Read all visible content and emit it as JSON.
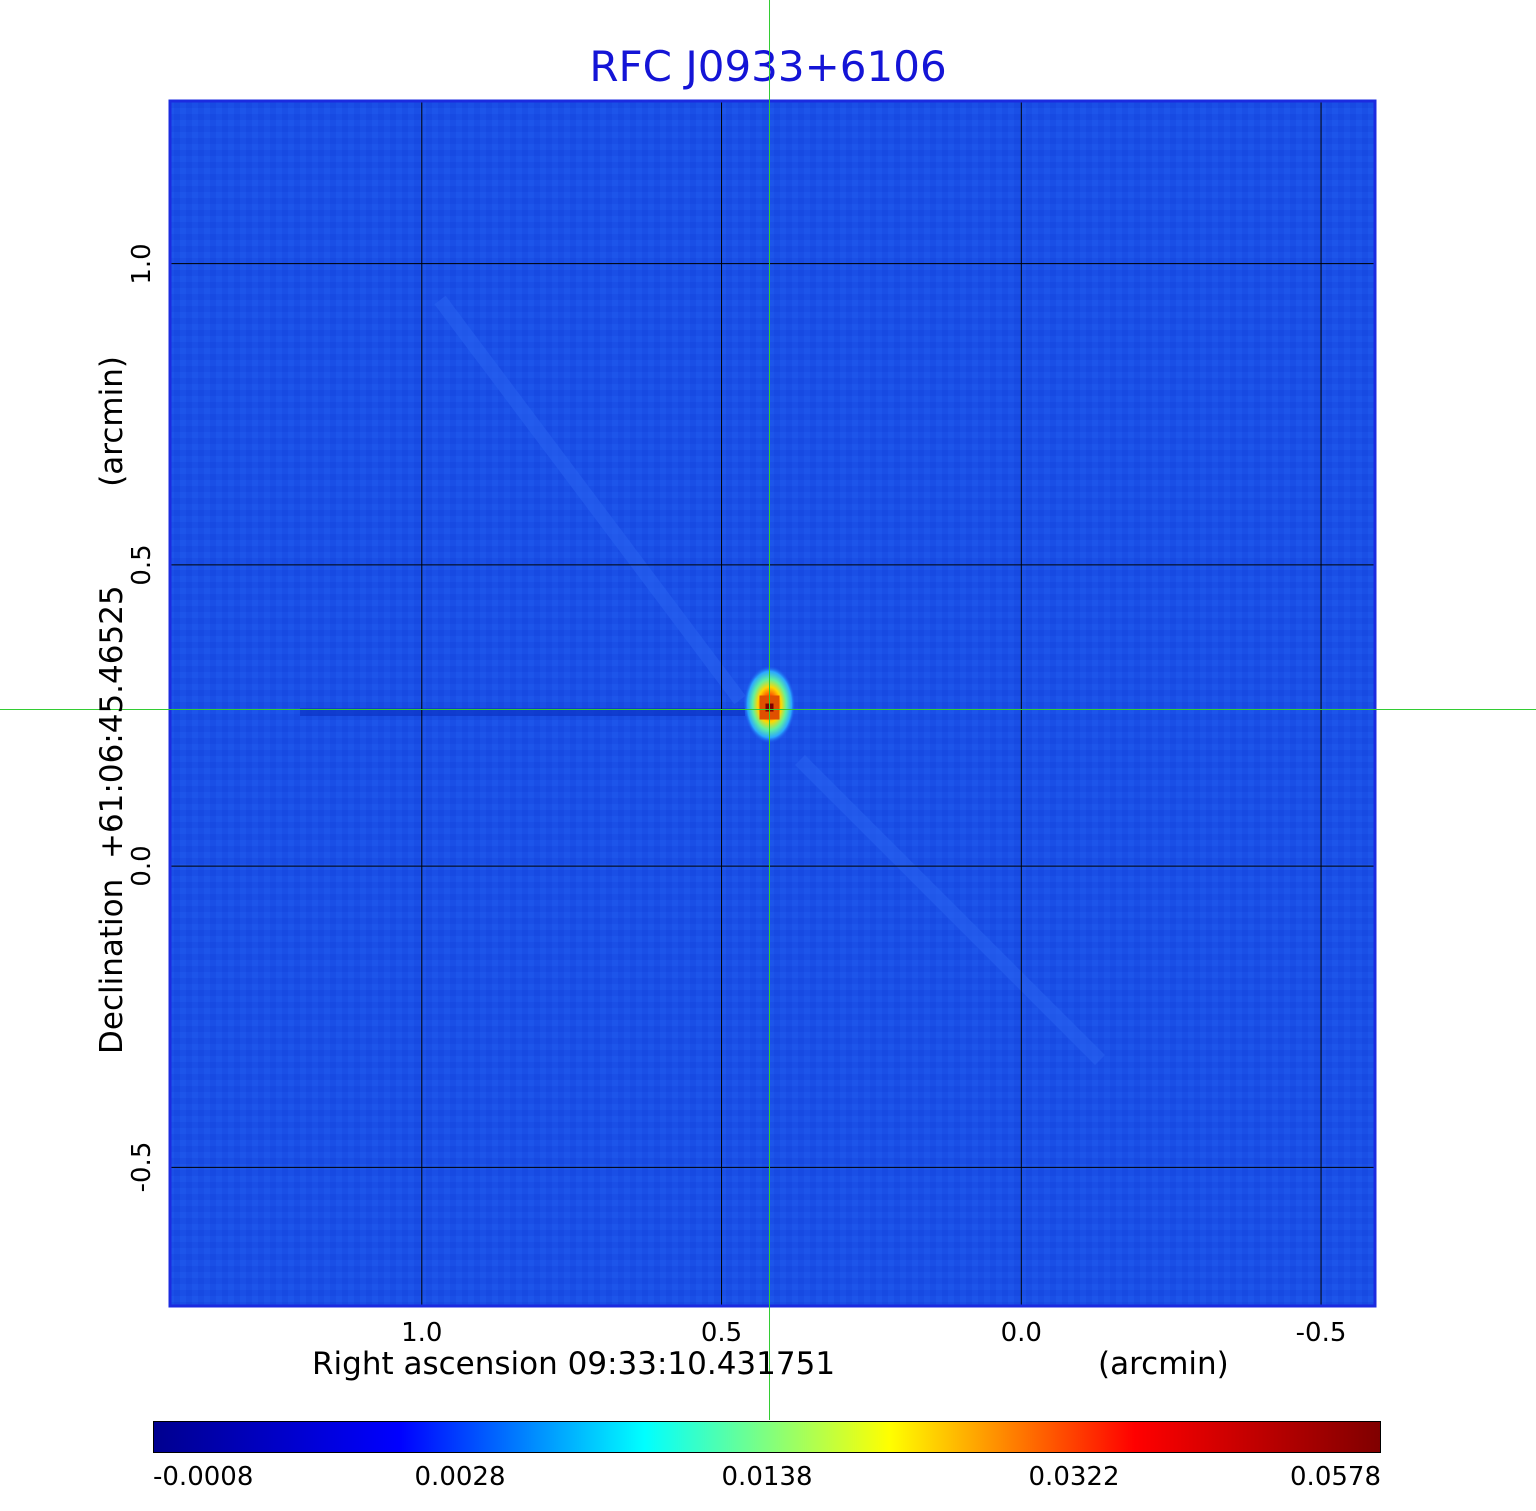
{
  "chart_data": {
    "type": "heatmap",
    "title": "RFC J0933+6106",
    "xlabel": "Right ascension  09:33:10.431751",
    "xunit": "(arcmin)",
    "ylabel": "Declination  +61:06:45.46525",
    "yunit": "(arcmin)",
    "xlim": [
      1.42,
      -0.59
    ],
    "ylim": [
      -0.73,
      1.27
    ],
    "x_ticks": [
      {
        "value": 1.0,
        "label": "1.0"
      },
      {
        "value": 0.5,
        "label": "0.5"
      },
      {
        "value": 0.0,
        "label": "0.0"
      },
      {
        "value": -0.5,
        "label": "-0.5"
      }
    ],
    "y_ticks": [
      {
        "value": 1.0,
        "label": "1.0"
      },
      {
        "value": 0.5,
        "label": "0.5"
      },
      {
        "value": 0.0,
        "label": "0.0"
      },
      {
        "value": -0.5,
        "label": "-0.5"
      }
    ],
    "grid": true,
    "source_position": {
      "x": 0.42,
      "y": 0.26
    },
    "peak_value": 0.0578,
    "crosshair": {
      "x": 0.42,
      "y": 0.26
    },
    "colorbar": {
      "colormap": "jet",
      "ticks": [
        "-0.0008",
        "0.0028",
        "0.0138",
        "0.0322",
        "0.0578"
      ],
      "colors": [
        "#00008f",
        "#0000ff",
        "#00ffff",
        "#ffff00",
        "#ff0000",
        "#800000"
      ]
    }
  },
  "colors": {
    "title": "#1414d6",
    "background_map": "#1a4fe6",
    "crosshair": "#33cc33",
    "frame": "#1b2be0"
  }
}
